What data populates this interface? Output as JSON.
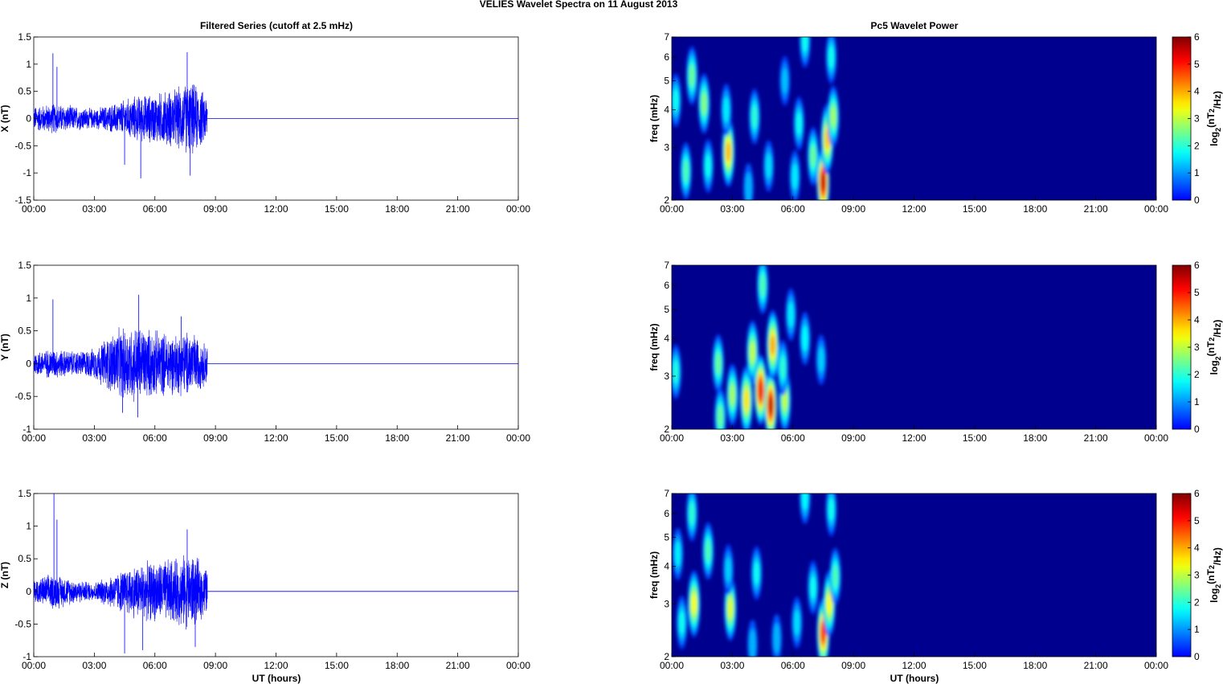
{
  "figure": {
    "title": "VELIES Wavelet Spectra on 11 August    2013",
    "left_title": "Filtered Series (cutoff at 2.5 mHz)",
    "right_title": "Pc5 Wavelet Power",
    "xlabel": "UT (hours)",
    "x_tick_labels": [
      "00:00",
      "03:00",
      "06:00",
      "09:00",
      "12:00",
      "15:00",
      "18:00",
      "21:00",
      "00:00"
    ],
    "colors": {
      "trace": "#0000ff",
      "axis": "#000000",
      "background": "#ffffff",
      "heat_background": "#00008f"
    }
  },
  "chart_data": [
    {
      "type": "line",
      "panel": "X",
      "ylabel": "X (nT)",
      "x_range_hours": [
        0,
        24
      ],
      "ylim": [
        -1.5,
        1.5
      ],
      "y_ticks": [
        -1.5,
        -1,
        -0.5,
        0,
        0.5,
        1,
        1.5
      ],
      "y_tick_labels": [
        "-1.5",
        "-1",
        "-0.5",
        "0",
        "0.5",
        "1",
        "1.5"
      ],
      "signal_end_hour": 8.6,
      "envelope": {
        "hours": [
          0,
          1,
          2,
          3,
          4,
          5,
          6,
          7,
          7.8,
          8.5
        ],
        "amplitude": [
          0.25,
          0.3,
          0.25,
          0.2,
          0.3,
          0.45,
          0.5,
          0.6,
          0.75,
          0.5
        ]
      },
      "spikes": [
        {
          "hour": 0.95,
          "value": 1.2
        },
        {
          "hour": 1.15,
          "value": 0.95
        },
        {
          "hour": 4.5,
          "value": -0.85
        },
        {
          "hour": 5.3,
          "value": -1.1
        },
        {
          "hour": 7.6,
          "value": 1.22
        },
        {
          "hour": 7.75,
          "value": -1.05
        }
      ]
    },
    {
      "type": "line",
      "panel": "Y",
      "ylabel": "Y (nT)",
      "x_range_hours": [
        0,
        24
      ],
      "ylim": [
        -1,
        1.5
      ],
      "y_ticks": [
        -1,
        -0.5,
        0,
        0.5,
        1,
        1.5
      ],
      "y_tick_labels": [
        "-1",
        "-0.5",
        "0",
        "0.5",
        "1",
        "1.5"
      ],
      "signal_end_hour": 8.6,
      "envelope": {
        "hours": [
          0,
          1,
          2,
          3,
          4,
          5,
          6,
          7,
          7.8,
          8.5
        ],
        "amplitude": [
          0.2,
          0.25,
          0.2,
          0.25,
          0.55,
          0.65,
          0.55,
          0.5,
          0.55,
          0.35
        ]
      },
      "spikes": [
        {
          "hour": 0.95,
          "value": 0.98
        },
        {
          "hour": 5.2,
          "value": 1.05
        },
        {
          "hour": 5.15,
          "value": -0.82
        },
        {
          "hour": 4.4,
          "value": -0.75
        },
        {
          "hour": 7.3,
          "value": 0.72
        }
      ]
    },
    {
      "type": "line",
      "panel": "Z",
      "ylabel": "Z (nT)",
      "x_range_hours": [
        0,
        24
      ],
      "ylim": [
        -1,
        1.5
      ],
      "y_ticks": [
        -1,
        -0.5,
        0,
        0.5,
        1,
        1.5
      ],
      "y_tick_labels": [
        "-1",
        "-0.5",
        "0",
        "0.5",
        "1",
        "1.5"
      ],
      "signal_end_hour": 8.6,
      "envelope": {
        "hours": [
          0,
          1,
          2,
          3,
          4,
          5,
          6,
          7,
          7.8,
          8.5
        ],
        "amplitude": [
          0.2,
          0.3,
          0.2,
          0.15,
          0.3,
          0.45,
          0.5,
          0.55,
          0.65,
          0.4
        ]
      },
      "spikes": [
        {
          "hour": 1.0,
          "value": 1.5
        },
        {
          "hour": 1.15,
          "value": 1.1
        },
        {
          "hour": 4.5,
          "value": -0.95
        },
        {
          "hour": 5.4,
          "value": -0.9
        },
        {
          "hour": 7.6,
          "value": 0.95
        },
        {
          "hour": 8.0,
          "value": -0.85
        }
      ]
    },
    {
      "type": "heatmap",
      "panel": "X-power",
      "ylabel": "freq (mHz)",
      "colorbar_label": "log2(nT2/Hz)",
      "x_range_hours": [
        0,
        24
      ],
      "y_scale": "log",
      "ylim": [
        2,
        7
      ],
      "y_ticks": [
        2,
        3,
        4,
        5,
        6,
        7
      ],
      "colorbar_range": [
        0,
        6
      ],
      "colorbar_ticks": [
        0,
        1,
        2,
        3,
        4,
        5,
        6
      ],
      "blobs": [
        {
          "hour": 0.2,
          "freq": 4.3,
          "power": 1.8
        },
        {
          "hour": 0.7,
          "freq": 2.5,
          "power": 2.2
        },
        {
          "hour": 1.0,
          "freq": 5.2,
          "power": 2.4
        },
        {
          "hour": 1.6,
          "freq": 4.2,
          "power": 2.6
        },
        {
          "hour": 1.8,
          "freq": 2.6,
          "power": 1.8
        },
        {
          "hour": 2.8,
          "freq": 2.9,
          "power": 3.9
        },
        {
          "hour": 2.7,
          "freq": 4.0,
          "power": 1.6
        },
        {
          "hour": 3.8,
          "freq": 2.2,
          "power": 1.2
        },
        {
          "hour": 4.1,
          "freq": 3.8,
          "power": 2.0
        },
        {
          "hour": 4.8,
          "freq": 2.6,
          "power": 1.5
        },
        {
          "hour": 5.6,
          "freq": 5.0,
          "power": 1.3
        },
        {
          "hour": 6.1,
          "freq": 2.4,
          "power": 1.6
        },
        {
          "hour": 6.3,
          "freq": 3.6,
          "power": 1.8
        },
        {
          "hour": 6.6,
          "freq": 6.8,
          "power": 1.8
        },
        {
          "hour": 7.0,
          "freq": 2.8,
          "power": 2.4
        },
        {
          "hour": 7.5,
          "freq": 2.3,
          "power": 5.5
        },
        {
          "hour": 7.7,
          "freq": 3.2,
          "power": 3.8
        },
        {
          "hour": 8.0,
          "freq": 3.8,
          "power": 2.8
        },
        {
          "hour": 7.9,
          "freq": 6.0,
          "power": 1.8
        }
      ]
    },
    {
      "type": "heatmap",
      "panel": "Y-power",
      "ylabel": "freq (mHz)",
      "colorbar_label": "log2(nT2/Hz)",
      "x_range_hours": [
        0,
        24
      ],
      "y_scale": "log",
      "ylim": [
        2,
        7
      ],
      "y_ticks": [
        2,
        3,
        4,
        5,
        6,
        7
      ],
      "colorbar_range": [
        0,
        6
      ],
      "colorbar_ticks": [
        0,
        1,
        2,
        3,
        4,
        5,
        6
      ],
      "blobs": [
        {
          "hour": 0.2,
          "freq": 3.1,
          "power": 1.9
        },
        {
          "hour": 2.3,
          "freq": 3.3,
          "power": 2.4
        },
        {
          "hour": 2.4,
          "freq": 2.2,
          "power": 2.4
        },
        {
          "hour": 3.0,
          "freq": 2.6,
          "power": 2.8
        },
        {
          "hour": 3.7,
          "freq": 2.5,
          "power": 3.6
        },
        {
          "hour": 4.0,
          "freq": 3.6,
          "power": 3.0
        },
        {
          "hour": 4.4,
          "freq": 2.7,
          "power": 5.2
        },
        {
          "hour": 4.5,
          "freq": 6.0,
          "power": 2.2
        },
        {
          "hour": 4.9,
          "freq": 2.4,
          "power": 5.5
        },
        {
          "hour": 5.0,
          "freq": 3.8,
          "power": 4.0
        },
        {
          "hour": 5.6,
          "freq": 2.5,
          "power": 3.0
        },
        {
          "hour": 5.5,
          "freq": 3.2,
          "power": 2.0
        },
        {
          "hour": 5.9,
          "freq": 4.8,
          "power": 1.6
        },
        {
          "hour": 6.6,
          "freq": 4.0,
          "power": 1.7
        },
        {
          "hour": 7.4,
          "freq": 3.4,
          "power": 1.4
        }
      ]
    },
    {
      "type": "heatmap",
      "panel": "Z-power",
      "ylabel": "freq (mHz)",
      "colorbar_label": "log2(nT2/Hz)",
      "x_range_hours": [
        0,
        24
      ],
      "y_scale": "log",
      "ylim": [
        2,
        7
      ],
      "y_ticks": [
        2,
        3,
        4,
        5,
        6,
        7
      ],
      "colorbar_range": [
        0,
        6
      ],
      "colorbar_ticks": [
        0,
        1,
        2,
        3,
        4,
        5,
        6
      ],
      "blobs": [
        {
          "hour": 0.3,
          "freq": 4.4,
          "power": 1.6
        },
        {
          "hour": 0.5,
          "freq": 2.6,
          "power": 1.8
        },
        {
          "hour": 1.1,
          "freq": 3.0,
          "power": 3.4
        },
        {
          "hour": 1.0,
          "freq": 6.0,
          "power": 2.0
        },
        {
          "hour": 1.8,
          "freq": 4.5,
          "power": 2.2
        },
        {
          "hour": 2.9,
          "freq": 2.9,
          "power": 3.2
        },
        {
          "hour": 2.8,
          "freq": 3.9,
          "power": 1.4
        },
        {
          "hour": 4.0,
          "freq": 2.2,
          "power": 1.2
        },
        {
          "hour": 4.2,
          "freq": 3.8,
          "power": 1.8
        },
        {
          "hour": 5.2,
          "freq": 2.3,
          "power": 1.2
        },
        {
          "hour": 6.2,
          "freq": 2.6,
          "power": 1.5
        },
        {
          "hour": 6.6,
          "freq": 6.8,
          "power": 1.7
        },
        {
          "hour": 7.0,
          "freq": 3.4,
          "power": 1.8
        },
        {
          "hour": 7.5,
          "freq": 2.4,
          "power": 4.8
        },
        {
          "hour": 7.8,
          "freq": 3.0,
          "power": 3.4
        },
        {
          "hour": 8.1,
          "freq": 3.7,
          "power": 2.2
        },
        {
          "hour": 7.9,
          "freq": 6.2,
          "power": 1.8
        }
      ]
    }
  ]
}
